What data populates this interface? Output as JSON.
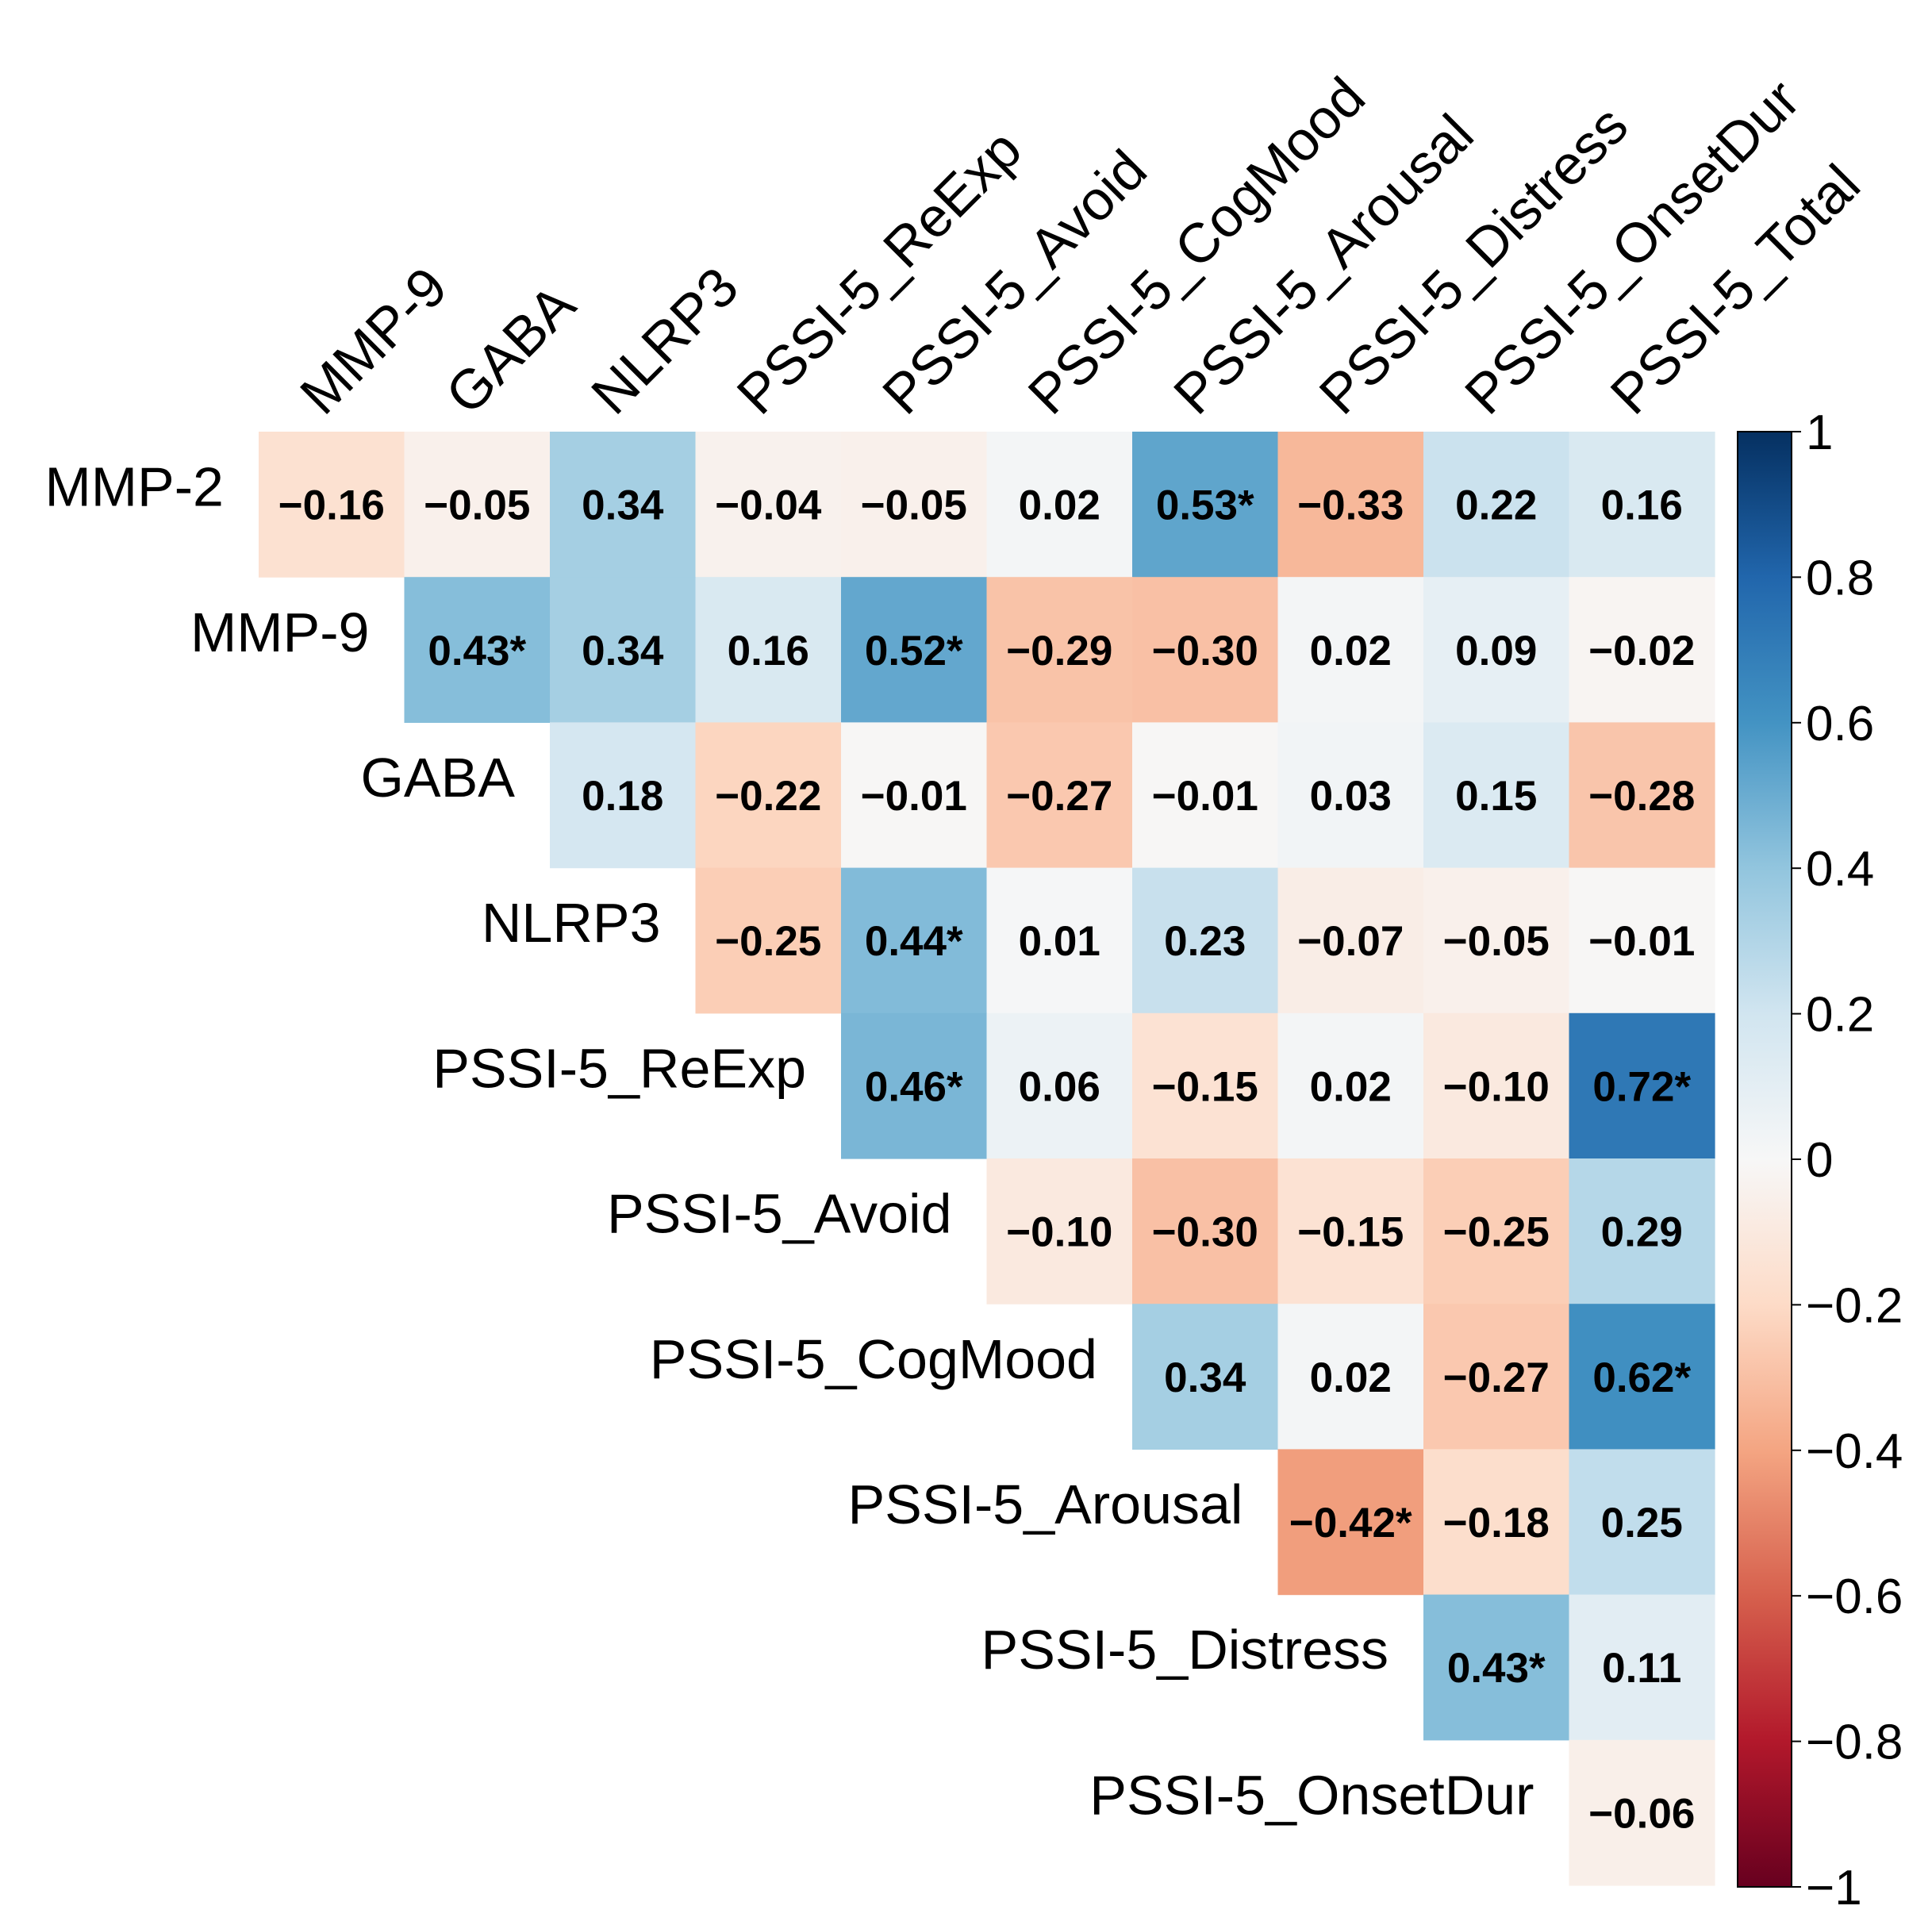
{
  "chart_data": {
    "type": "heatmap",
    "subtype": "upper-triangular correlation matrix",
    "row_labels": [
      "MMP-2",
      "MMP-9",
      "GABA",
      "NLRP3",
      "PSSI-5_ReExp",
      "PSSI-5_Avoid",
      "PSSI-5_CogMood",
      "PSSI-5_Arousal",
      "PSSI-5_Distress",
      "PSSI-5_OnsetDur"
    ],
    "column_labels": [
      "MMP-9",
      "GABA",
      "NLRP3",
      "PSSI-5_ReExp",
      "PSSI-5_Avoid",
      "PSSI-5_CogMood",
      "PSSI-5_Arousal",
      "PSSI-5_Distress",
      "PSSI-5_OnsetDur",
      "PSSI-5_Total"
    ],
    "values": [
      [
        -0.16,
        -0.05,
        0.34,
        -0.04,
        -0.05,
        0.02,
        0.53,
        -0.33,
        0.22,
        0.16
      ],
      [
        null,
        0.43,
        0.34,
        0.16,
        0.52,
        -0.29,
        -0.3,
        0.02,
        0.09,
        -0.02
      ],
      [
        null,
        null,
        0.18,
        -0.22,
        -0.01,
        -0.27,
        -0.01,
        0.03,
        0.15,
        -0.28
      ],
      [
        null,
        null,
        null,
        -0.25,
        0.44,
        0.01,
        0.23,
        -0.07,
        -0.05,
        -0.01
      ],
      [
        null,
        null,
        null,
        null,
        0.46,
        0.06,
        -0.15,
        0.02,
        -0.1,
        0.72
      ],
      [
        null,
        null,
        null,
        null,
        null,
        -0.1,
        -0.3,
        -0.15,
        -0.25,
        0.29
      ],
      [
        null,
        null,
        null,
        null,
        null,
        null,
        0.34,
        0.02,
        -0.27,
        0.62
      ],
      [
        null,
        null,
        null,
        null,
        null,
        null,
        null,
        -0.42,
        -0.18,
        0.25
      ],
      [
        null,
        null,
        null,
        null,
        null,
        null,
        null,
        null,
        0.43,
        0.11
      ],
      [
        null,
        null,
        null,
        null,
        null,
        null,
        null,
        null,
        null,
        -0.06
      ]
    ],
    "cell_labels": [
      [
        "−0.16",
        "−0.05",
        "0.34",
        "−0.04",
        "−0.05",
        "0.02",
        "0.53*",
        "−0.33",
        "0.22",
        "0.16"
      ],
      [
        "",
        "0.43*",
        "0.34",
        "0.16",
        "0.52*",
        "−0.29",
        "−0.30",
        "0.02",
        "0.09",
        "−0.02"
      ],
      [
        "",
        "",
        "0.18",
        "−0.22",
        "−0.01",
        "−0.27",
        "−0.01",
        "0.03",
        "0.15",
        "−0.28"
      ],
      [
        "",
        "",
        "",
        "−0.25",
        "0.44*",
        "0.01",
        "0.23",
        "−0.07",
        "−0.05",
        "−0.01"
      ],
      [
        "",
        "",
        "",
        "",
        "0.46*",
        "0.06",
        "−0.15",
        "0.02",
        "−0.10",
        "0.72*"
      ],
      [
        "",
        "",
        "",
        "",
        "",
        "−0.10",
        "−0.30",
        "−0.15",
        "−0.25",
        "0.29"
      ],
      [
        "",
        "",
        "",
        "",
        "",
        "",
        "0.34",
        "0.02",
        "−0.27",
        "0.62*"
      ],
      [
        "",
        "",
        "",
        "",
        "",
        "",
        "",
        "−0.42*",
        "−0.18",
        "0.25"
      ],
      [
        "",
        "",
        "",
        "",
        "",
        "",
        "",
        "",
        "0.43*",
        "0.11"
      ],
      [
        "",
        "",
        "",
        "",
        "",
        "",
        "",
        "",
        "",
        "−0.06"
      ]
    ],
    "colorbar": {
      "range": [
        -1,
        1
      ],
      "ticks": [
        1,
        0.8,
        0.6,
        0.4,
        0.2,
        0,
        -0.2,
        -0.4,
        -0.6,
        -0.8,
        -1
      ],
      "tick_labels": [
        "1",
        "0.8",
        "0.6",
        "0.4",
        "0.2",
        "0",
        "−0.2",
        "−0.4",
        "−0.6",
        "−0.8",
        "−1"
      ],
      "colormap": "RdBu",
      "stops": [
        {
          "v": -1.0,
          "color": "#67001f"
        },
        {
          "v": -0.8,
          "color": "#b2182b"
        },
        {
          "v": -0.6,
          "color": "#d6604d"
        },
        {
          "v": -0.4,
          "color": "#f4a582"
        },
        {
          "v": -0.2,
          "color": "#fddbc7"
        },
        {
          "v": 0.0,
          "color": "#f7f7f7"
        },
        {
          "v": 0.2,
          "color": "#d1e5f0"
        },
        {
          "v": 0.4,
          "color": "#92c5de"
        },
        {
          "v": 0.6,
          "color": "#4393c3"
        },
        {
          "v": 0.8,
          "color": "#2166ac"
        },
        {
          "v": 1.0,
          "color": "#053061"
        }
      ]
    },
    "significance_marker": "*",
    "legend_position": "right"
  }
}
